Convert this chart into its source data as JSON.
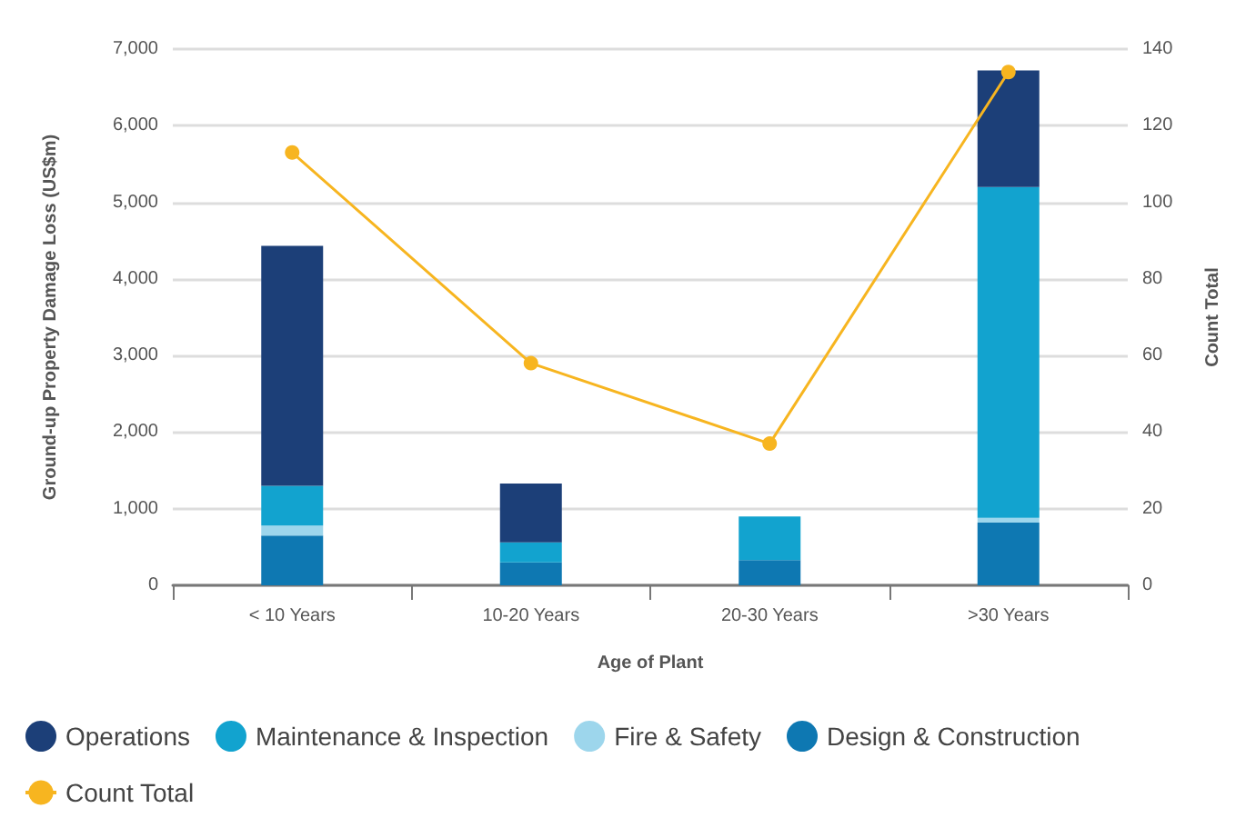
{
  "chart_data": {
    "type": "bar",
    "stacked": true,
    "xlabel": "Age of Plant",
    "ylabel": "Ground-up Property Damage Loss (US$m)",
    "y2label": "Count Total",
    "categories": [
      "< 10 Years",
      "10-20 Years",
      "20-30 Years",
      ">30 Years"
    ],
    "series": [
      {
        "name": "Design & Construction",
        "color": "#0e78b2",
        "values": [
          650,
          300,
          330,
          820
        ]
      },
      {
        "name": "Fire & Safety",
        "color": "#9dd6ec",
        "values": [
          130,
          0,
          0,
          60
        ]
      },
      {
        "name": "Maintenance & Inspection",
        "color": "#12a3cf",
        "values": [
          520,
          260,
          570,
          4320
        ]
      },
      {
        "name": "Operations",
        "color": "#1c3f78",
        "values": [
          3130,
          770,
          0,
          1520
        ]
      },
      {
        "name": "Count Total",
        "type": "line",
        "axis": "y2",
        "color": "#f7b520",
        "marker": "circle",
        "values": [
          113,
          58,
          37,
          134
        ]
      }
    ],
    "ylim": [
      0,
      7000
    ],
    "yticks": [
      0,
      {
        "value": 1000,
        "label": "1,000"
      },
      {
        "value": 2000,
        "label": "2,000"
      },
      {
        "value": 3000,
        "label": "3,000"
      },
      {
        "value": 4000,
        "label": "4,000"
      },
      {
        "value": 5000,
        "label": "5,000"
      },
      {
        "value": 6000,
        "label": "6,000"
      },
      {
        "value": 7000,
        "label": "7,000"
      }
    ],
    "y2lim": [
      0,
      140
    ],
    "y2ticks": [
      0,
      20,
      40,
      60,
      80,
      100,
      120,
      140
    ],
    "grid": "y",
    "legend": "bottom"
  }
}
